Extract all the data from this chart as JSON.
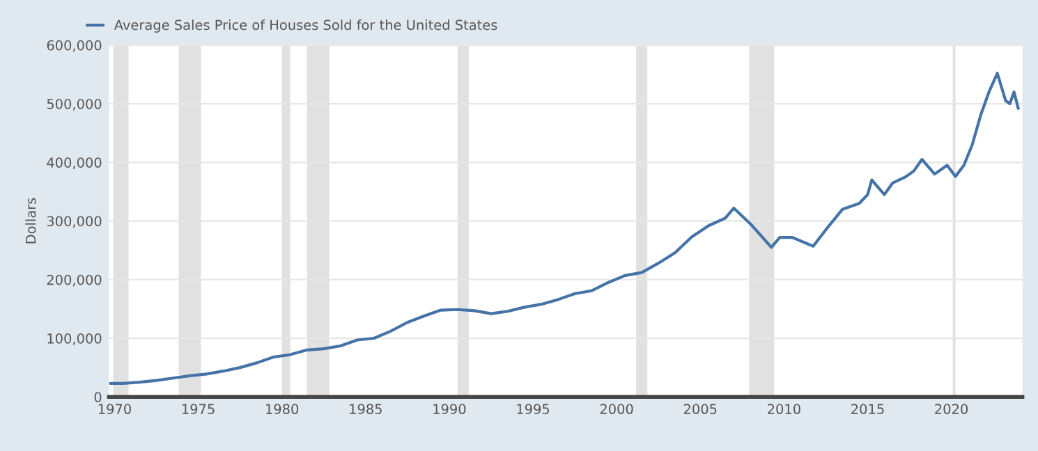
{
  "chart_data": {
    "type": "line",
    "ylabel": "Dollars",
    "x": [
      "1969-10",
      "1970-07",
      "1971-07",
      "1972-07",
      "1973-07",
      "1974-07",
      "1975-07",
      "1976-07",
      "1977-07",
      "1978-07",
      "1979-07",
      "1980-07",
      "1981-07",
      "1982-07",
      "1983-07",
      "1984-07",
      "1985-07",
      "1986-07",
      "1987-07",
      "1988-07",
      "1989-07",
      "1990-07",
      "1991-07",
      "1992-07",
      "1993-07",
      "1994-07",
      "1995-07",
      "1996-07",
      "1997-07",
      "1998-07",
      "1999-07",
      "2000-07",
      "2001-07",
      "2002-07",
      "2003-07",
      "2004-07",
      "2005-07",
      "2006-07",
      "2007-01",
      "2008-01",
      "2009-04",
      "2009-10",
      "2010-07",
      "2011-10",
      "2012-07",
      "2013-07",
      "2014-07",
      "2015-01",
      "2015-04",
      "2016-01",
      "2016-07",
      "2017-04",
      "2017-10",
      "2018-04",
      "2019-01",
      "2019-10",
      "2020-04",
      "2020-10",
      "2021-04",
      "2021-10",
      "2022-04",
      "2022-10",
      "2023-04",
      "2023-07",
      "2023-10",
      "2024-01"
    ],
    "series": [
      {
        "name": "Average Sales Price of Houses Sold for the United States",
        "color": "#4572a7",
        "values": [
          23000,
          23000,
          25000,
          28000,
          32000,
          36000,
          39000,
          44000,
          50000,
          58000,
          68000,
          72000,
          80000,
          82000,
          87000,
          97000,
          100000,
          112000,
          127000,
          138000,
          148000,
          149000,
          147000,
          142000,
          146000,
          153000,
          158000,
          166000,
          176000,
          181000,
          195000,
          207000,
          212000,
          228000,
          246000,
          273000,
          292000,
          305000,
          322000,
          295000,
          255000,
          272000,
          272000,
          257000,
          285000,
          320000,
          330000,
          345000,
          370000,
          345000,
          365000,
          375000,
          385000,
          405000,
          380000,
          395000,
          376000,
          395000,
          430000,
          480000,
          520000,
          552000,
          505000,
          500000,
          520000,
          492000
        ]
      }
    ],
    "xlim": [
      "1969-09",
      "2024-04"
    ],
    "xticks": [
      "1970",
      "1975",
      "1980",
      "1985",
      "1990",
      "1995",
      "2000",
      "2005",
      "2010",
      "2015",
      "2020"
    ],
    "ylim": [
      0,
      600000
    ],
    "yticks": [
      0,
      {
        "value": 100000,
        "label": "100,000"
      },
      {
        "value": 200000,
        "label": "200,000"
      },
      {
        "value": 300000,
        "label": "300,000"
      },
      {
        "value": 400000,
        "label": "400,000"
      },
      {
        "value": 500000,
        "label": "500,000"
      },
      {
        "value": 600000,
        "label": "600,000"
      }
    ],
    "bands": [
      {
        "axis": "x",
        "from": "1969-12",
        "to": "1970-11",
        "color": "#e1e1e1"
      },
      {
        "axis": "x",
        "from": "1973-11",
        "to": "1975-03",
        "color": "#e1e1e1"
      },
      {
        "axis": "x",
        "from": "1980-01",
        "to": "1980-07",
        "color": "#e1e1e1"
      },
      {
        "axis": "x",
        "from": "1981-07",
        "to": "1982-11",
        "color": "#e1e1e1"
      },
      {
        "axis": "x",
        "from": "1990-07",
        "to": "1991-03",
        "color": "#e1e1e1"
      },
      {
        "axis": "x",
        "from": "2001-03",
        "to": "2001-11",
        "color": "#e1e1e1"
      },
      {
        "axis": "x",
        "from": "2007-12",
        "to": "2009-06",
        "color": "#e1e1e1"
      },
      {
        "axis": "x",
        "from": "2020-02",
        "to": "2020-04",
        "color": "#e1e1e1"
      }
    ],
    "grid": "y",
    "legend": "top left",
    "line_style": "solid",
    "marker": "none"
  }
}
